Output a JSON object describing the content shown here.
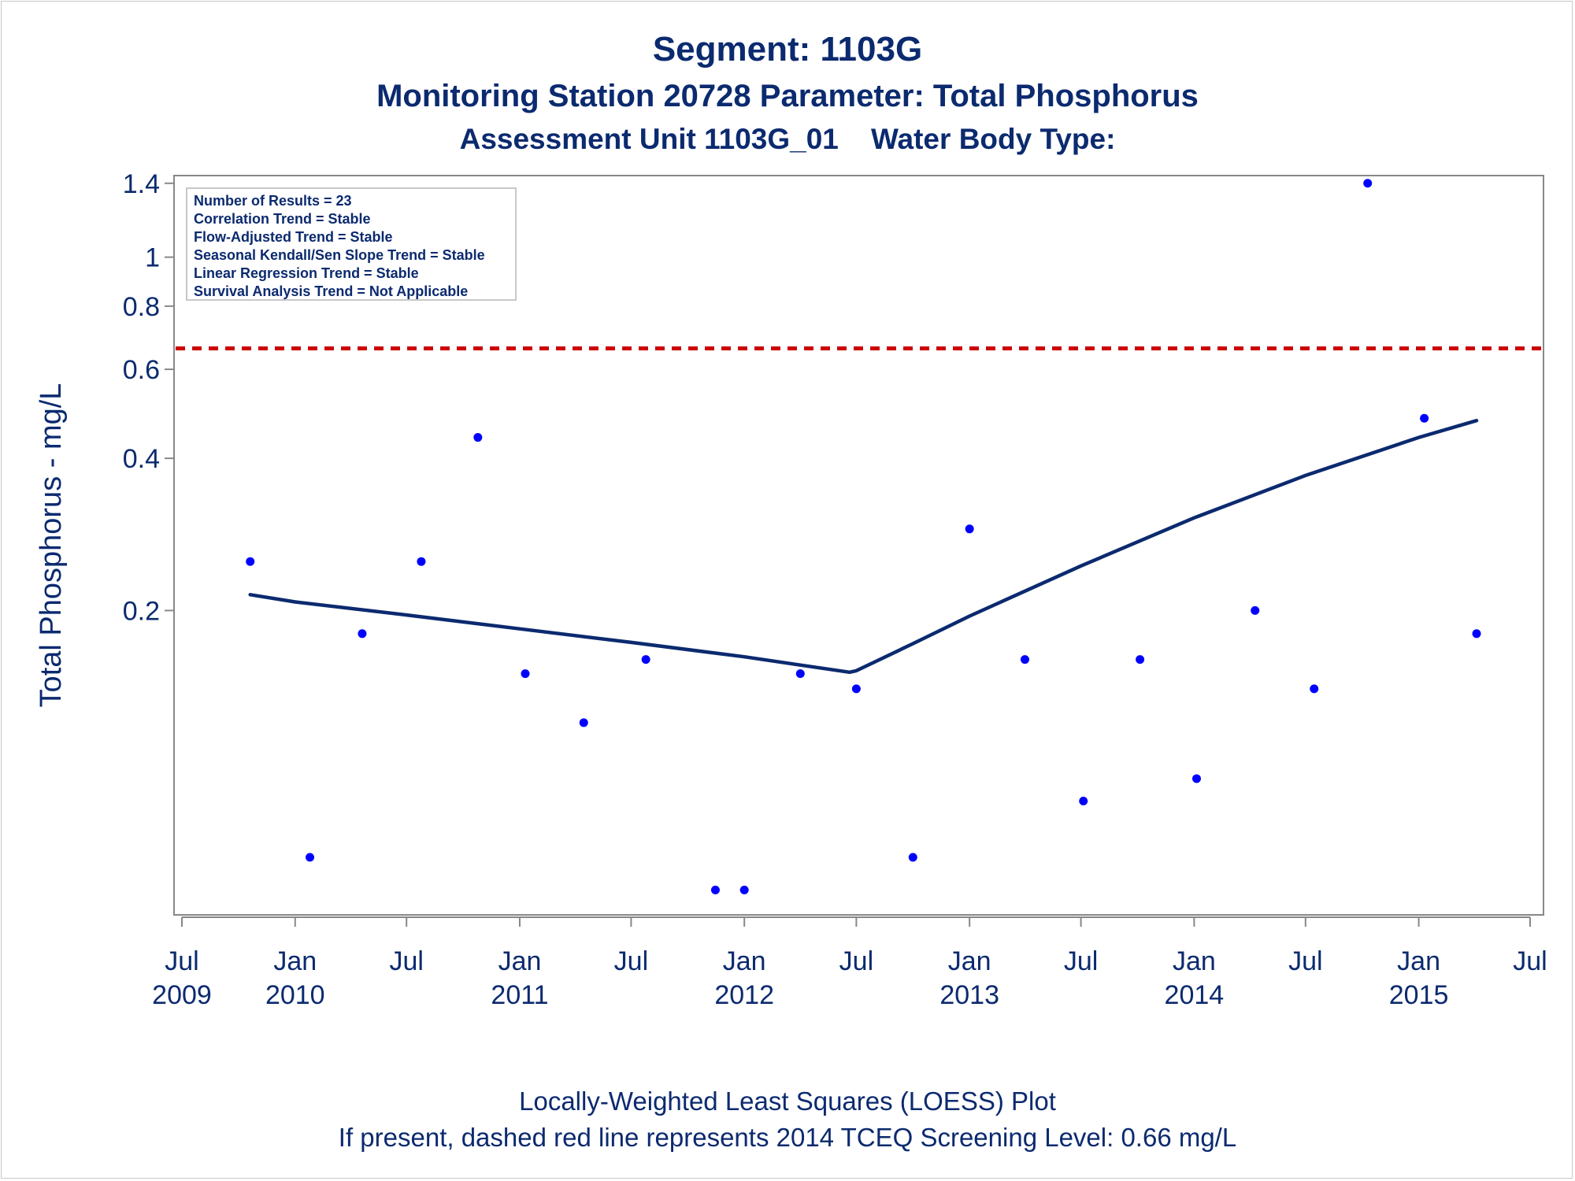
{
  "titles": {
    "line1": "Segment: 1103G",
    "line2": "Monitoring Station 20728 Parameter: Total Phosphorus",
    "line3": "Assessment Unit 1103G_01    Water Body Type:"
  },
  "stats_box": [
    "Number of Results = 23",
    "Correlation Trend = Stable",
    "Flow-Adjusted Trend = Stable",
    "Seasonal Kendall/Sen Slope Trend = Stable",
    "Linear Regression Trend = Stable",
    "Survival Analysis Trend = Not Applicable"
  ],
  "footnotes": {
    "line1": "Locally-Weighted Least Squares (LOESS) Plot",
    "line2": "If present, dashed red line represents 2014 TCEQ Screening Level: 0.66 mg/L"
  },
  "colors": {
    "text": "#0b2a6f",
    "points": "#0000ff",
    "loess": "#0b2a6f",
    "screening_line": "#cc0000",
    "axis": "#888888"
  },
  "chart_data": {
    "type": "scatter",
    "ylabel": "Total Phosphorus - mg/L",
    "xlabel": "",
    "y_scale": "log",
    "ylim": [
      0.05,
      1.45
    ],
    "xlim": [
      "2009-07-01",
      "2015-07-01"
    ],
    "y_ticks": [
      {
        "value": 0.2,
        "label": "0.2"
      },
      {
        "value": 0.4,
        "label": "0.4"
      },
      {
        "value": 0.6,
        "label": "0.6"
      },
      {
        "value": 0.8,
        "label": "0.8"
      },
      {
        "value": 1.0,
        "label": "1"
      },
      {
        "value": 1.4,
        "label": "1.4"
      }
    ],
    "x_ticks": [
      {
        "date": "2009-07-01",
        "month": "Jul",
        "year": "2009"
      },
      {
        "date": "2010-01-01",
        "month": "Jan",
        "year": "2010"
      },
      {
        "date": "2010-07-01",
        "month": "Jul",
        "year": ""
      },
      {
        "date": "2011-01-01",
        "month": "Jan",
        "year": "2011"
      },
      {
        "date": "2011-07-01",
        "month": "Jul",
        "year": ""
      },
      {
        "date": "2012-01-01",
        "month": "Jan",
        "year": "2012"
      },
      {
        "date": "2012-07-01",
        "month": "Jul",
        "year": ""
      },
      {
        "date": "2013-01-01",
        "month": "Jan",
        "year": "2013"
      },
      {
        "date": "2013-07-01",
        "month": "Jul",
        "year": ""
      },
      {
        "date": "2014-01-01",
        "month": "Jan",
        "year": "2014"
      },
      {
        "date": "2014-07-01",
        "month": "Jul",
        "year": ""
      },
      {
        "date": "2015-01-01",
        "month": "Jan",
        "year": "2015"
      },
      {
        "date": "2015-07-01",
        "month": "Jul",
        "year": ""
      }
    ],
    "grid": false,
    "reference_line": {
      "value": 0.66,
      "style": "dashed"
    },
    "points": [
      {
        "date": "2009-10-20",
        "value": 0.25
      },
      {
        "date": "2010-01-25",
        "value": 0.065
      },
      {
        "date": "2010-04-20",
        "value": 0.18
      },
      {
        "date": "2010-07-25",
        "value": 0.25
      },
      {
        "date": "2010-10-25",
        "value": 0.44
      },
      {
        "date": "2011-01-10",
        "value": 0.15
      },
      {
        "date": "2011-04-15",
        "value": 0.12
      },
      {
        "date": "2011-07-25",
        "value": 0.16
      },
      {
        "date": "2011-11-15",
        "value": 0.056
      },
      {
        "date": "2012-01-01",
        "value": 0.056
      },
      {
        "date": "2012-04-01",
        "value": 0.15
      },
      {
        "date": "2012-07-01",
        "value": 0.14
      },
      {
        "date": "2012-10-01",
        "value": 0.065
      },
      {
        "date": "2013-01-01",
        "value": 0.29
      },
      {
        "date": "2013-04-01",
        "value": 0.16
      },
      {
        "date": "2013-07-05",
        "value": 0.084
      },
      {
        "date": "2013-10-05",
        "value": 0.16
      },
      {
        "date": "2014-01-05",
        "value": 0.093
      },
      {
        "date": "2014-04-10",
        "value": 0.2
      },
      {
        "date": "2014-07-15",
        "value": 0.14
      },
      {
        "date": "2014-10-10",
        "value": 1.4
      },
      {
        "date": "2015-01-10",
        "value": 0.48
      },
      {
        "date": "2015-04-05",
        "value": 0.18
      }
    ],
    "loess": [
      {
        "date": "2009-10-20",
        "value": 0.215
      },
      {
        "date": "2010-01-01",
        "value": 0.208
      },
      {
        "date": "2010-07-01",
        "value": 0.196
      },
      {
        "date": "2011-01-01",
        "value": 0.184
      },
      {
        "date": "2011-07-01",
        "value": 0.173
      },
      {
        "date": "2012-01-01",
        "value": 0.162
      },
      {
        "date": "2012-04-01",
        "value": 0.156
      },
      {
        "date": "2012-06-20",
        "value": 0.151
      },
      {
        "date": "2012-07-01",
        "value": 0.152
      },
      {
        "date": "2012-10-01",
        "value": 0.172
      },
      {
        "date": "2013-01-01",
        "value": 0.195
      },
      {
        "date": "2013-07-01",
        "value": 0.245
      },
      {
        "date": "2014-01-01",
        "value": 0.305
      },
      {
        "date": "2014-07-01",
        "value": 0.37
      },
      {
        "date": "2015-01-01",
        "value": 0.44
      },
      {
        "date": "2015-04-05",
        "value": 0.475
      }
    ]
  }
}
